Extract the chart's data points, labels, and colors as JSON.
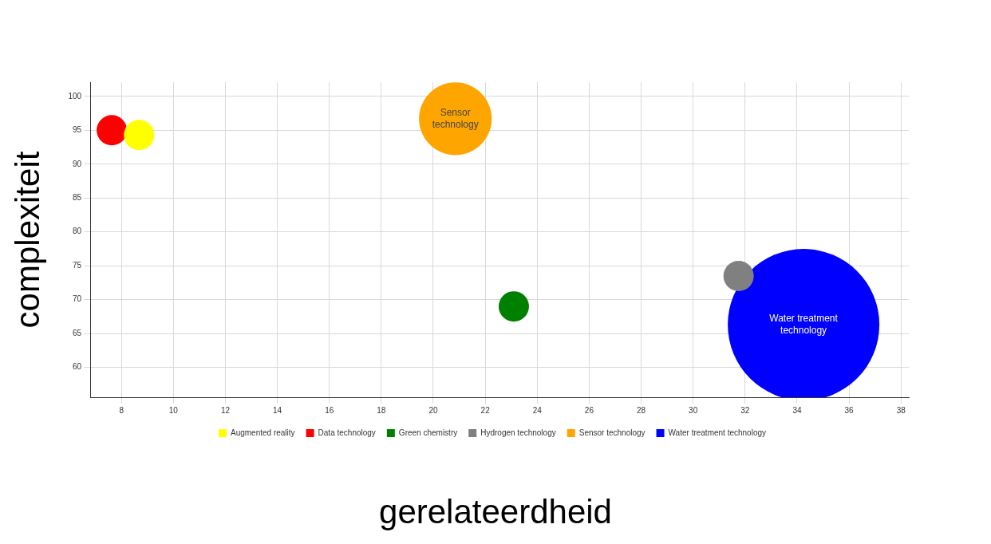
{
  "chart_data": {
    "type": "bubble",
    "xlabel": "gerelateerdheid",
    "ylabel": "complexiteit",
    "xlim": [
      6.8,
      38.3
    ],
    "xticks": [
      8,
      10,
      12,
      14,
      16,
      18,
      20,
      22,
      24,
      26,
      28,
      30,
      32,
      34,
      36,
      38
    ],
    "ylim": [
      55.6,
      102.1
    ],
    "yticks": [
      60,
      65,
      70,
      75,
      80,
      85,
      90,
      95,
      100
    ],
    "grid": true,
    "legend": "bottom",
    "series": [
      {
        "name": "Augmented reality",
        "color": "#ffff00",
        "x": [
          8.68
        ],
        "values": [
          94.3
        ],
        "sizes": [
          0.04
        ]
      },
      {
        "name": "Data technology",
        "color": "#ff0000",
        "x": [
          7.63
        ],
        "values": [
          95.0
        ],
        "sizes": [
          0.04
        ]
      },
      {
        "name": "Green chemistry",
        "color": "#008000",
        "x": [
          23.1
        ],
        "values": [
          69.0
        ],
        "sizes": [
          0.04
        ]
      },
      {
        "name": "Hydrogen technology",
        "color": "#808080",
        "x": [
          31.75
        ],
        "values": [
          73.5
        ],
        "sizes": [
          0.04
        ]
      },
      {
        "name": "Sensor technology",
        "color": "#ffa500",
        "x": [
          20.85
        ],
        "values": [
          96.7
        ],
        "sizes": [
          0.23
        ]
      },
      {
        "name": "Water treatment technology",
        "color": "#0000ff",
        "x": [
          34.25
        ],
        "values": [
          66.3
        ],
        "sizes": [
          1
        ]
      }
    ],
    "annotations": [
      {
        "text": "Sensor technology",
        "x": 20.85,
        "y": 96.7
      },
      {
        "text": "Water treatment technology",
        "x": 34.25,
        "y": 66.3
      }
    ]
  }
}
